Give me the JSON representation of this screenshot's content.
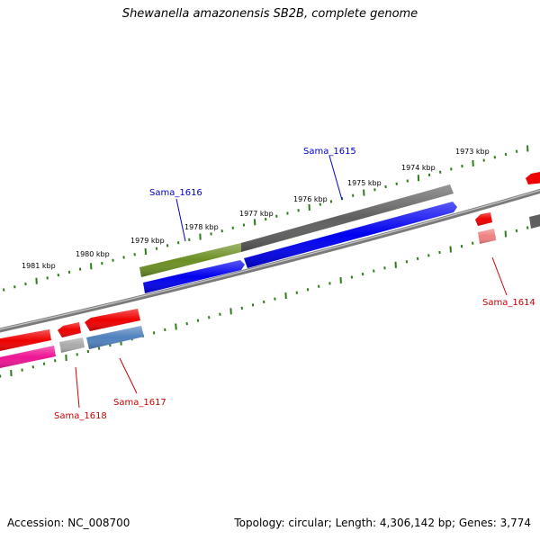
{
  "title": "Shewanella amazonensis SB2B, complete genome",
  "footer": {
    "accession": "Accession: NC_008700",
    "summary": "Topology: circular; Length: 4,306,142 bp; Genes: 3,774"
  },
  "ruler": {
    "labels": [
      "1981 kbp",
      "1980 kbp",
      "1979 kbp",
      "1978 kbp",
      "1977 kbp",
      "1976 kbp",
      "1975 kbp",
      "1974 kbp",
      "1973 kbp"
    ]
  },
  "colors": {
    "ticks": "#2e7d1a",
    "backbone": "#8a8a8a",
    "red": "#ee0000",
    "blue": "#0000ee",
    "gray": "#666666",
    "green": "#6b8e23",
    "steelblue": "#4f81bd",
    "pink": "#ee1493",
    "lightgray": "#aaaaaa",
    "lightred": "#f08080",
    "label_blue": "#0000cc",
    "label_red": "#cc0000"
  },
  "gene_labels": {
    "sama_1615": "Sama_1615",
    "sama_1616": "Sama_1616",
    "sama_1614": "Sama_1614",
    "sama_1617": "Sama_1617",
    "sama_1618": "Sama_1618"
  }
}
